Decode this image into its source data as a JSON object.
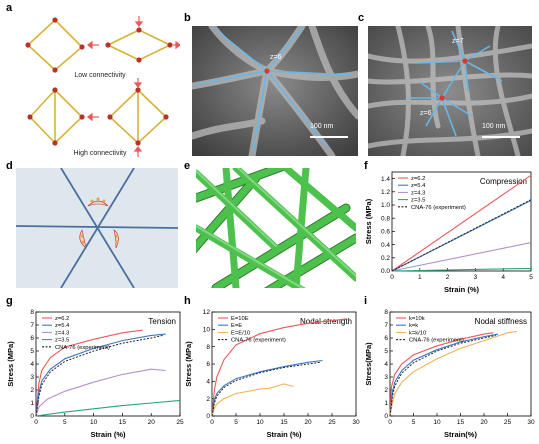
{
  "panels": {
    "a": {
      "label": "a",
      "low_caption": "Low connectivity",
      "high_caption": "High connectivity"
    },
    "b": {
      "label": "b",
      "z_label": "z=6",
      "scale_bar": "100 nm"
    },
    "c": {
      "label": "c",
      "z_label_top": "z=7",
      "z_label_bottom": "z=6",
      "scale_bar": "100 nm"
    },
    "d": {
      "label": "d"
    },
    "e": {
      "label": "e"
    },
    "f": {
      "label": "f",
      "title": "Compression"
    },
    "g": {
      "label": "g",
      "title": "Tension"
    },
    "h": {
      "label": "h",
      "title": "Nodal strength"
    },
    "i": {
      "label": "i",
      "title": "Nodal stiffness"
    }
  },
  "colors": {
    "red": "#e8595a",
    "blue": "#3a78c2",
    "purple": "#b38fd1",
    "orange": "#f2b15b",
    "green": "#2aa37a",
    "gold": "#cfb23a",
    "node": "#b8322b",
    "lattice_green": "#4cc24c"
  },
  "chart_data": [
    {
      "id": "f",
      "type": "line",
      "title": "Compression",
      "xlabel": "Strain (%)",
      "ylabel": "Stress (MPa)",
      "xlim": [
        0,
        5
      ],
      "ylim": [
        0,
        1.5
      ],
      "xticks": [
        0,
        1,
        2,
        3,
        4,
        5
      ],
      "yticks": [
        0.0,
        0.2,
        0.4,
        0.6,
        0.8,
        1.0,
        1.2,
        1.4
      ],
      "legend_position": "top-left",
      "series": [
        {
          "name": "z=6.2",
          "color": "#e8595a",
          "dash": false,
          "points": [
            [
              0,
              0
            ],
            [
              5,
              1.45
            ]
          ]
        },
        {
          "name": "z=5.4",
          "color": "#3a78c2",
          "dash": false,
          "points": [
            [
              0,
              0
            ],
            [
              5,
              1.07
            ]
          ]
        },
        {
          "name": "z=4.3",
          "color": "#b38fd1",
          "dash": false,
          "points": [
            [
              0,
              0
            ],
            [
              5,
              0.43
            ]
          ]
        },
        {
          "name": "z=3.5",
          "color": "#2aa37a",
          "dash": false,
          "points": [
            [
              0,
              0
            ],
            [
              5,
              0.04
            ]
          ]
        },
        {
          "name": "CNA-76 (experiment)",
          "color": "#222222",
          "dash": true,
          "points": [
            [
              0,
              0
            ],
            [
              5,
              1.08
            ]
          ]
        }
      ]
    },
    {
      "id": "g",
      "type": "line",
      "title": "Tension",
      "xlabel": "Strain (%)",
      "ylabel": "Stress (MPa)",
      "xlim": [
        0,
        25
      ],
      "ylim": [
        0,
        8
      ],
      "xticks": [
        0,
        5,
        10,
        15,
        20,
        25
      ],
      "yticks": [
        0,
        1,
        2,
        3,
        4,
        5,
        6,
        7,
        8
      ],
      "legend_position": "top-left",
      "series": [
        {
          "name": "z=6.2",
          "color": "#e8595a",
          "dash": false,
          "points": [
            [
              0,
              0
            ],
            [
              0.5,
              2.5
            ],
            [
              1,
              3.5
            ],
            [
              2.5,
              4.5
            ],
            [
              5,
              5.3
            ],
            [
              10,
              5.9
            ],
            [
              15,
              6.4
            ],
            [
              18.5,
              6.6
            ]
          ]
        },
        {
          "name": "z=5.4",
          "color": "#3a78c2",
          "dash": false,
          "points": [
            [
              0,
              0
            ],
            [
              0.5,
              1.8
            ],
            [
              1,
              2.7
            ],
            [
              2.5,
              3.6
            ],
            [
              5,
              4.4
            ],
            [
              10,
              5.2
            ],
            [
              15,
              5.8
            ],
            [
              20,
              6.2
            ],
            [
              22.5,
              6.3
            ]
          ]
        },
        {
          "name": "z=4.3",
          "color": "#b38fd1",
          "dash": false,
          "points": [
            [
              0,
              0
            ],
            [
              0.5,
              0.7
            ],
            [
              2,
              1.3
            ],
            [
              5,
              1.9
            ],
            [
              10,
              2.6
            ],
            [
              15,
              3.2
            ],
            [
              20,
              3.6
            ],
            [
              22.5,
              3.5
            ]
          ]
        },
        {
          "name": "z=3.5",
          "color": "#2aa37a",
          "dash": false,
          "points": [
            [
              0,
              0
            ],
            [
              5,
              0.3
            ],
            [
              10,
              0.55
            ],
            [
              15,
              0.8
            ],
            [
              20,
              1.0
            ],
            [
              25,
              1.2
            ]
          ]
        },
        {
          "name": "CNA-76 (experiment)",
          "color": "#222222",
          "dash": true,
          "points": [
            [
              0,
              0
            ],
            [
              0.5,
              1.5
            ],
            [
              1,
              2.4
            ],
            [
              2.5,
              3.4
            ],
            [
              5,
              4.2
            ],
            [
              10,
              5.0
            ],
            [
              15,
              5.6
            ],
            [
              20,
              6.0
            ],
            [
              22,
              6.2
            ]
          ]
        }
      ]
    },
    {
      "id": "h",
      "type": "line",
      "title": "Nodal strength",
      "xlabel": "Strain (%)",
      "ylabel": "Stress (MPa)",
      "xlim": [
        0,
        30
      ],
      "ylim": [
        0,
        12
      ],
      "xticks": [
        0,
        5,
        10,
        15,
        20,
        25,
        30
      ],
      "yticks": [
        0,
        2,
        4,
        6,
        8,
        10,
        12
      ],
      "legend_position": "top-left",
      "series": [
        {
          "name": "E=10E",
          "color": "#e8595a",
          "dash": false,
          "points": [
            [
              0,
              0
            ],
            [
              0.5,
              3
            ],
            [
              1,
              4.5
            ],
            [
              2.5,
              6.5
            ],
            [
              5,
              8.2
            ],
            [
              10,
              9.5
            ],
            [
              15,
              10.2
            ],
            [
              20,
              10.7
            ],
            [
              25,
              11
            ],
            [
              28,
              11.2
            ]
          ]
        },
        {
          "name": "E=E",
          "color": "#3a78c2",
          "dash": false,
          "points": [
            [
              0,
              0
            ],
            [
              0.5,
              1.8
            ],
            [
              1,
              2.6
            ],
            [
              2.5,
              3.5
            ],
            [
              5,
              4.3
            ],
            [
              10,
              5.1
            ],
            [
              15,
              5.7
            ],
            [
              20,
              6.2
            ],
            [
              23,
              6.4
            ]
          ]
        },
        {
          "name": "E=E/10",
          "color": "#f2b15b",
          "dash": false,
          "points": [
            [
              0,
              0
            ],
            [
              0.5,
              0.9
            ],
            [
              1,
              1.4
            ],
            [
              2.5,
              2.0
            ],
            [
              5,
              2.6
            ],
            [
              10,
              3.1
            ],
            [
              12,
              3.2
            ],
            [
              15,
              3.7
            ],
            [
              17,
              3.4
            ]
          ]
        },
        {
          "name": "CNA-76 (experiment)",
          "color": "#222222",
          "dash": true,
          "points": [
            [
              0,
              0
            ],
            [
              0.5,
              1.5
            ],
            [
              1,
              2.3
            ],
            [
              2.5,
              3.3
            ],
            [
              5,
              4.1
            ],
            [
              10,
              5.0
            ],
            [
              15,
              5.6
            ],
            [
              20,
              6.0
            ],
            [
              22.5,
              6.2
            ]
          ]
        }
      ]
    },
    {
      "id": "i",
      "type": "line",
      "title": "Nodal stiffness",
      "xlabel": "Strain(%)",
      "ylabel": "Stress(MPa)",
      "xlim": [
        0,
        30
      ],
      "ylim": [
        0,
        8
      ],
      "xticks": [
        0,
        5,
        10,
        15,
        20,
        25,
        30
      ],
      "yticks": [
        0,
        1,
        2,
        3,
        4,
        5,
        6,
        7,
        8
      ],
      "legend_position": "top-left",
      "series": [
        {
          "name": "k=10k",
          "color": "#e8595a",
          "dash": false,
          "points": [
            [
              0,
              0
            ],
            [
              0.3,
              2.2
            ],
            [
              1,
              3.2
            ],
            [
              2.5,
              4.0
            ],
            [
              5,
              4.7
            ],
            [
              10,
              5.4
            ],
            [
              15,
              5.9
            ],
            [
              20,
              6.3
            ],
            [
              22,
              6.4
            ]
          ]
        },
        {
          "name": "k=k",
          "color": "#3a78c2",
          "dash": false,
          "points": [
            [
              0,
              0
            ],
            [
              0.5,
              1.8
            ],
            [
              1,
              2.6
            ],
            [
              2.5,
              3.5
            ],
            [
              5,
              4.3
            ],
            [
              10,
              5.1
            ],
            [
              15,
              5.7
            ],
            [
              20,
              6.1
            ],
            [
              23,
              6.3
            ]
          ]
        },
        {
          "name": "k=k/10",
          "color": "#f2b15b",
          "dash": false,
          "points": [
            [
              0,
              0
            ],
            [
              0.5,
              1.0
            ],
            [
              1,
              1.7
            ],
            [
              2.5,
              2.6
            ],
            [
              5,
              3.4
            ],
            [
              10,
              4.4
            ],
            [
              15,
              5.2
            ],
            [
              20,
              5.8
            ],
            [
              25,
              6.4
            ],
            [
              27,
              6.5
            ]
          ]
        },
        {
          "name": "CNA-76 (experiment)",
          "color": "#222222",
          "dash": true,
          "points": [
            [
              0,
              0
            ],
            [
              0.5,
              1.5
            ],
            [
              1,
              2.3
            ],
            [
              2.5,
              3.3
            ],
            [
              5,
              4.1
            ],
            [
              10,
              5.0
            ],
            [
              15,
              5.6
            ],
            [
              20,
              6.0
            ],
            [
              22.5,
              6.2
            ]
          ]
        }
      ]
    }
  ]
}
